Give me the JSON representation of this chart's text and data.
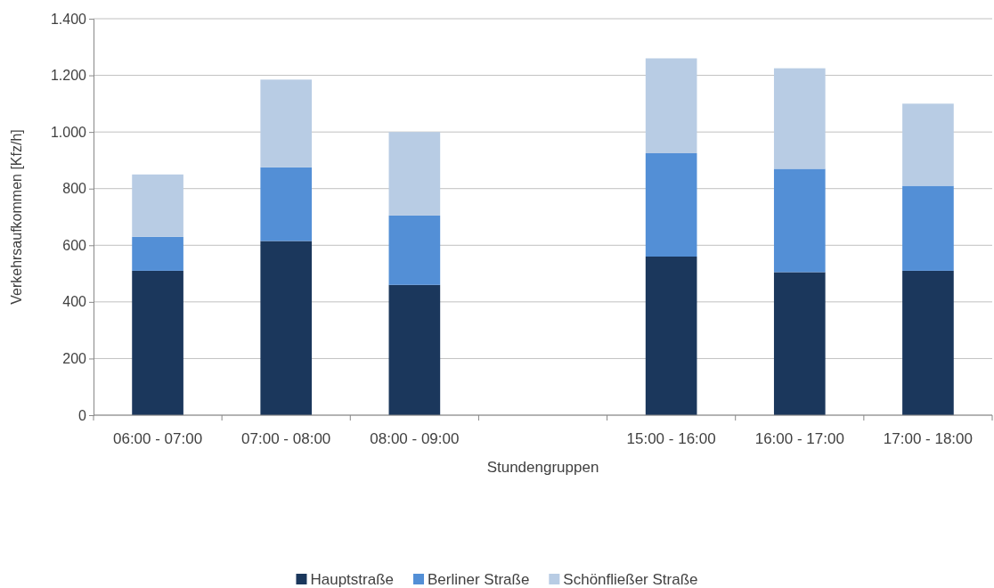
{
  "chart_data": {
    "type": "bar",
    "stacked": true,
    "xlabel": "Stundengruppen",
    "ylabel": "Verkehrsaufkommen [Kfz/h]",
    "categories": [
      "06:00 - 07:00",
      "07:00 - 08:00",
      "08:00 - 09:00",
      null,
      "15:00 - 16:00",
      "16:00 - 17:00",
      "17:00 - 18:00"
    ],
    "series": [
      {
        "name": "Hauptstraße",
        "color": "#1b375c",
        "values": [
          510,
          615,
          460,
          null,
          560,
          505,
          510
        ]
      },
      {
        "name": "Berliner Straße",
        "color": "#538fd6",
        "values": [
          120,
          260,
          245,
          null,
          365,
          365,
          300
        ]
      },
      {
        "name": "Schönfließer Straße",
        "color": "#b8cce4",
        "values": [
          220,
          310,
          295,
          null,
          335,
          355,
          290
        ]
      }
    ],
    "ylim": [
      0,
      1400
    ],
    "yticks": [
      0,
      200,
      400,
      600,
      800,
      {
        "value": 1000,
        "label": "1.000"
      },
      {
        "value": 1200,
        "label": "1.200"
      },
      {
        "value": 1400,
        "label": "1.400"
      }
    ],
    "grid": "y",
    "legend": "bottom"
  }
}
